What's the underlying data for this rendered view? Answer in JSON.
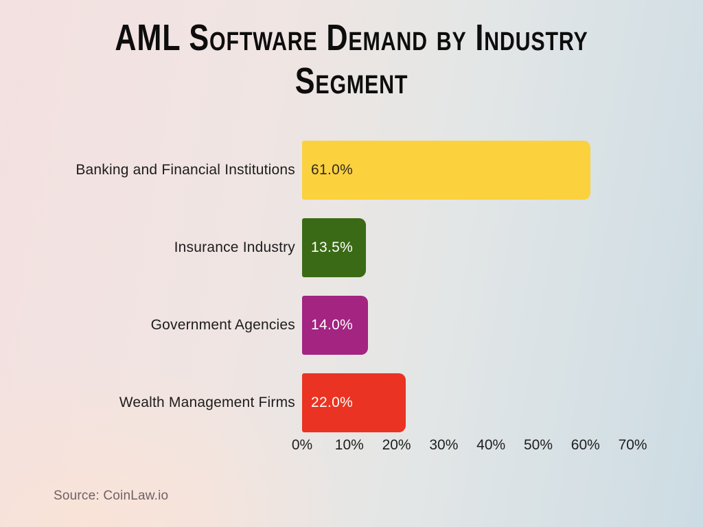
{
  "title": {
    "text": "AML Software Demand by Industry Segment"
  },
  "source": {
    "text": "Source: CoinLaw.io"
  },
  "chart_data": {
    "type": "bar",
    "orientation": "horizontal",
    "title": "AML Software Demand by Industry Segment",
    "categories": [
      "Banking and Financial Institutions",
      "Insurance Industry",
      "Government Agencies",
      "Wealth Management Firms"
    ],
    "values": [
      61.0,
      13.5,
      14.0,
      22.0
    ],
    "value_labels": [
      "61.0%",
      "13.5%",
      "14.0%",
      "22.0%"
    ],
    "bar_colors": [
      "#fbd13e",
      "#3a6a15",
      "#a32481",
      "#ea3322"
    ],
    "value_label_colors": [
      "#332a20",
      "#ffffff",
      "#ffffff",
      "#ffffff"
    ],
    "xlabel": "",
    "ylabel": "",
    "xlim": [
      0,
      70
    ],
    "x_tick_labels": [
      "0%",
      "10%",
      "20%",
      "30%",
      "40%",
      "50%",
      "60%",
      "70%"
    ],
    "grid": false,
    "legend": false
  }
}
